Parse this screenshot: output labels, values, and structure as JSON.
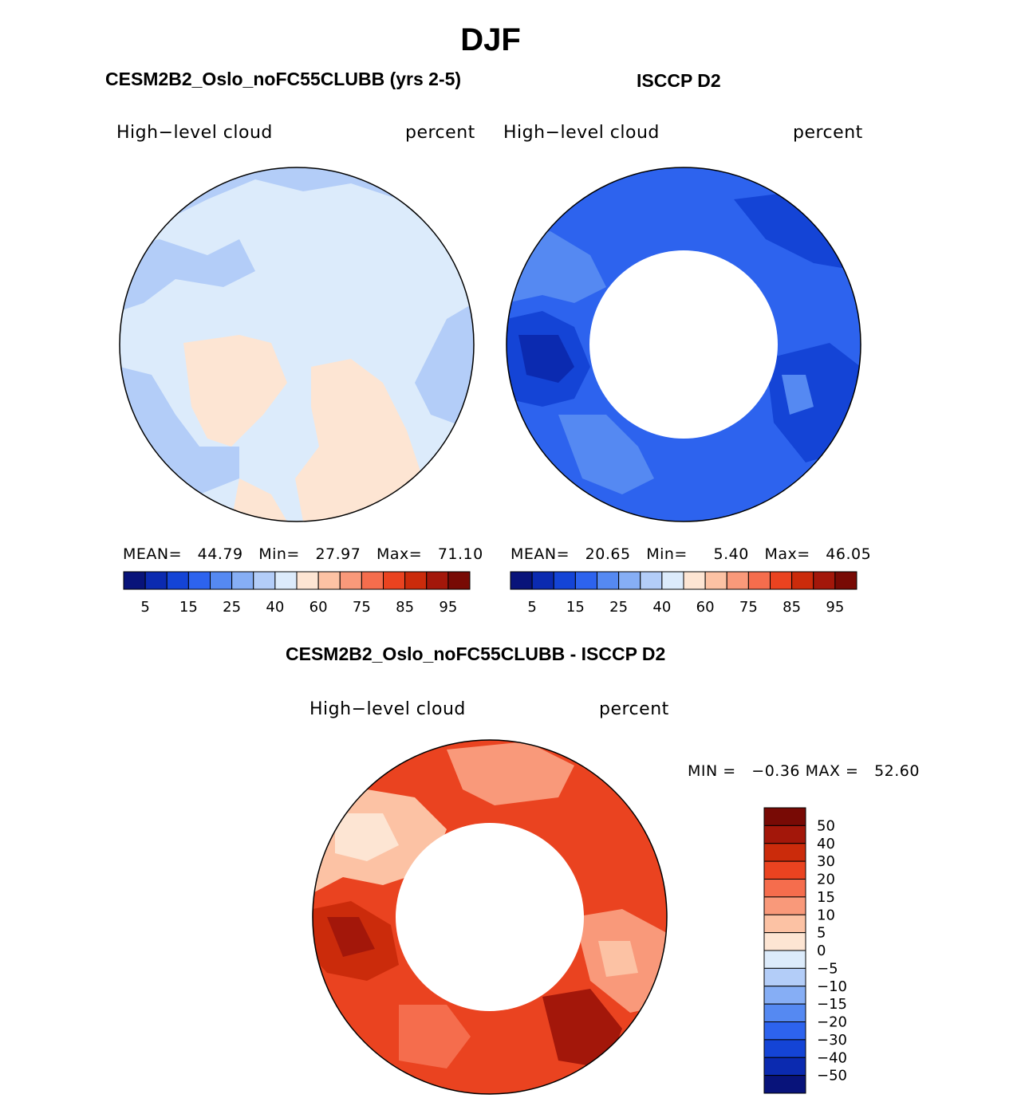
{
  "page": {
    "season": "DJF"
  },
  "panels": {
    "model": {
      "title": "CESM2B2_Oslo_noFC55CLUBB (yrs 2-5)",
      "left_label": "High−level cloud",
      "right_label": "percent",
      "stats": {
        "mean_label": "MEAN=",
        "mean": "44.79",
        "min_label": "Min=",
        "min": "27.97",
        "max_label": "Max=",
        "max": "71.10"
      }
    },
    "obs": {
      "title": "ISCCP D2",
      "left_label": "High−level cloud",
      "right_label": "percent",
      "stats": {
        "mean_label": "MEAN=",
        "mean": "20.65",
        "min_label": "Min=",
        "min": "5.40",
        "max_label": "Max=",
        "max": "46.05"
      }
    },
    "diff": {
      "title": "CESM2B2_Oslo_noFC55CLUBB - ISCCP D2",
      "left_label": "High−level cloud",
      "right_label": "percent",
      "stats": {
        "min_label": "MIN =",
        "min": "−0.36",
        "max_label": "MAX =",
        "max": "52.60"
      }
    }
  },
  "colorbar_abs": {
    "colors": [
      "#08137a",
      "#0b2ab0",
      "#1444d6",
      "#2d63ee",
      "#5589f2",
      "#86aef5",
      "#b3cdf8",
      "#dcebfb",
      "#fde5d3",
      "#fcc2a4",
      "#f9997a",
      "#f56d4d",
      "#ea4320",
      "#cb2b0b",
      "#a3170a",
      "#780a05"
    ],
    "labels": [
      "5",
      "15",
      "25",
      "40",
      "60",
      "75",
      "85",
      "95"
    ]
  },
  "colorbar_diff": {
    "colors": [
      "#780a05",
      "#a3170a",
      "#cb2b0b",
      "#ea4320",
      "#f56d4d",
      "#f9997a",
      "#fcc2a4",
      "#fde5d3",
      "#dcebfb",
      "#b3cdf8",
      "#86aef5",
      "#5589f2",
      "#2d63ee",
      "#1444d6",
      "#0b2ab0",
      "#08137a"
    ],
    "labels": [
      "50",
      "40",
      "30",
      "20",
      "15",
      "10",
      "5",
      "0",
      "−5",
      "−10",
      "−15",
      "−20",
      "−30",
      "−40",
      "−50"
    ]
  },
  "map_colors": {
    "model_base": "#dcebfb",
    "model_mid": "#b3cdf8",
    "model_warm": "#fde5d3",
    "obs_base": "#2d63ee",
    "obs_light": "#5589f2",
    "obs_dark": "#1444d6",
    "obs_darkest": "#0b2ab0",
    "diff_base": "#ea4320",
    "diff_light": "#f9997a",
    "diff_lighter": "#fcc2a4",
    "diff_dark": "#cb2b0b",
    "diff_darker": "#a3170a"
  }
}
